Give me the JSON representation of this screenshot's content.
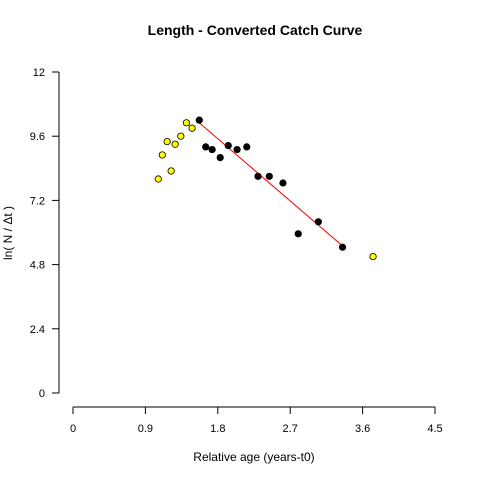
{
  "chart_data": {
    "type": "scatter",
    "title": "Length - Converted Catch Curve",
    "xlabel": "Relative age (years-t0)",
    "ylabel": "ln( N / Δt )",
    "xlim": [
      0,
      4.5
    ],
    "ylim": [
      0,
      12
    ],
    "x_ticks": [
      "0",
      "0.9",
      "1.8",
      "2.7",
      "3.6",
      "4.5"
    ],
    "y_ticks": [
      "0",
      "2.4",
      "4.8",
      "7.2",
      "9.6",
      "12"
    ],
    "grid": false,
    "series": [
      {
        "role": "excluded",
        "color": "#ffff00",
        "points": [
          [
            1.06,
            8.0
          ],
          [
            1.11,
            8.9
          ],
          [
            1.17,
            9.4
          ],
          [
            1.22,
            8.3
          ],
          [
            1.27,
            9.3
          ],
          [
            1.34,
            9.6
          ],
          [
            1.41,
            10.1
          ],
          [
            1.48,
            9.9
          ],
          [
            3.73,
            5.1
          ]
        ]
      },
      {
        "role": "fitted",
        "color": "#000000",
        "points": [
          [
            1.57,
            10.2
          ],
          [
            1.65,
            9.2
          ],
          [
            1.73,
            9.1
          ],
          [
            1.83,
            8.8
          ],
          [
            1.93,
            9.25
          ],
          [
            2.04,
            9.1
          ],
          [
            2.16,
            9.2
          ],
          [
            2.3,
            8.1
          ],
          [
            2.44,
            8.1
          ],
          [
            2.61,
            7.85
          ],
          [
            2.8,
            5.95
          ],
          [
            3.05,
            6.4
          ],
          [
            3.35,
            5.45
          ]
        ]
      }
    ],
    "regression_line": {
      "color": "#ff0000",
      "from": [
        1.57,
        10.1
      ],
      "to": [
        3.35,
        5.5
      ]
    }
  }
}
